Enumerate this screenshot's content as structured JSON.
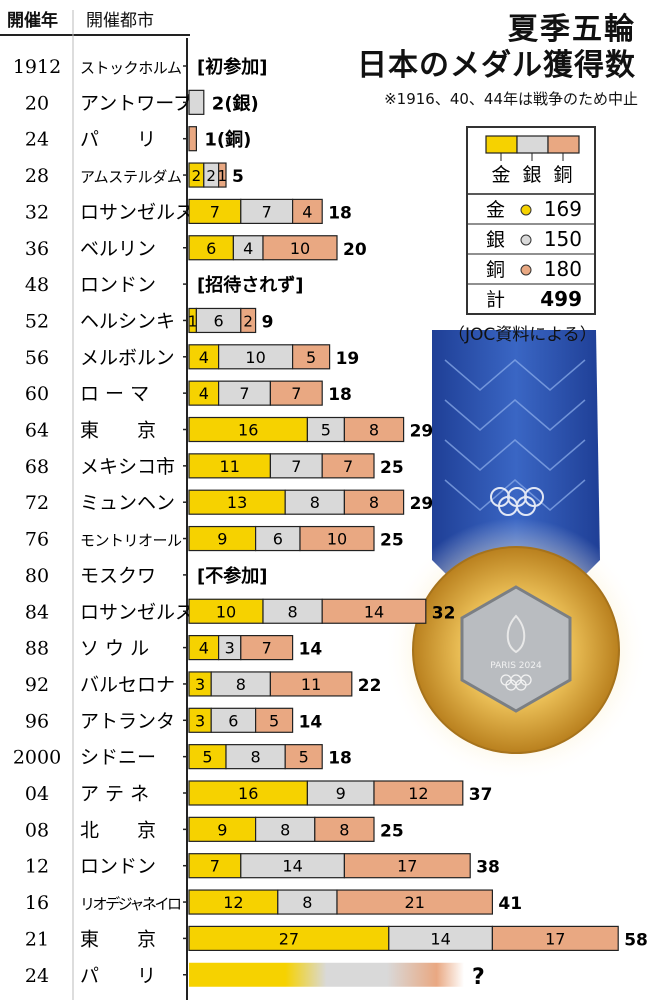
{
  "header": {
    "year_col": "開催年",
    "city_col": "開催都市"
  },
  "title": {
    "line1": "夏季五輪",
    "line2": "日本のメダル獲得数"
  },
  "note": "※1916、40、44年は戦争のため中止",
  "source": "（JOC資料による）",
  "colors": {
    "gold": "#f6d200",
    "silver": "#d9d9d9",
    "bronze": "#e9a882",
    "line": "#222"
  },
  "legend": {
    "labels": [
      "金",
      "銀",
      "銅"
    ],
    "rows": [
      {
        "label": "金",
        "value": "169",
        "color": "#f6d200"
      },
      {
        "label": "銀",
        "value": "150",
        "color": "#d9d9d9"
      },
      {
        "label": "銅",
        "value": "180",
        "color": "#e9a882"
      }
    ],
    "total_label": "計",
    "total_value": "499"
  },
  "chart_data": {
    "type": "bar",
    "stacked": true,
    "orientation": "horizontal",
    "years": [
      "1912",
      "20",
      "24",
      "28",
      "32",
      "36",
      "48",
      "52",
      "56",
      "60",
      "64",
      "68",
      "72",
      "76",
      "80",
      "84",
      "88",
      "92",
      "96",
      "2000",
      "04",
      "08",
      "12",
      "16",
      "21",
      "24"
    ],
    "cities": [
      "ストックホルム",
      "アントワープ",
      "パ　　リ",
      "アムステルダム",
      "ロサンゼルス",
      "ベルリン",
      "ロンドン",
      "ヘルシンキ",
      "メルボルン",
      "ロ ー マ",
      "東　　京",
      "メキシコ市",
      "ミュンヘン",
      "モントリオール",
      "モスクワ",
      "ロサンゼルス",
      "ソ ウ ル",
      "バルセロナ",
      "アトランタ",
      "シドニー",
      "ア テ ネ",
      "北　　京",
      "ロンドン",
      "リオデジャネイロ",
      "東　　京",
      "パ　　リ"
    ],
    "series": [
      {
        "name": "金",
        "values": [
          0,
          0,
          0,
          2,
          7,
          6,
          0,
          1,
          4,
          4,
          16,
          11,
          13,
          9,
          0,
          10,
          4,
          3,
          3,
          5,
          16,
          9,
          7,
          12,
          27,
          null
        ]
      },
      {
        "name": "銀",
        "values": [
          0,
          2,
          0,
          2,
          7,
          4,
          0,
          6,
          10,
          7,
          5,
          7,
          8,
          6,
          0,
          8,
          3,
          8,
          6,
          8,
          9,
          8,
          14,
          8,
          14,
          null
        ]
      },
      {
        "name": "銅",
        "values": [
          0,
          0,
          1,
          1,
          4,
          10,
          0,
          2,
          5,
          7,
          8,
          7,
          8,
          10,
          0,
          14,
          7,
          11,
          5,
          5,
          12,
          8,
          17,
          21,
          17,
          null
        ]
      }
    ],
    "totals": [
      "",
      "",
      "",
      "5",
      "18",
      "20",
      "",
      "9",
      "19",
      "18",
      "29",
      "25",
      "29",
      "25",
      "",
      "32",
      "14",
      "22",
      "14",
      "18",
      "37",
      "25",
      "38",
      "41",
      "58",
      "?"
    ],
    "annotations": {
      "0": "[初参加]",
      "1": "2(銀)",
      "2": "1(銅)",
      "6": "[招待されず]",
      "14": "[不参加]"
    }
  }
}
